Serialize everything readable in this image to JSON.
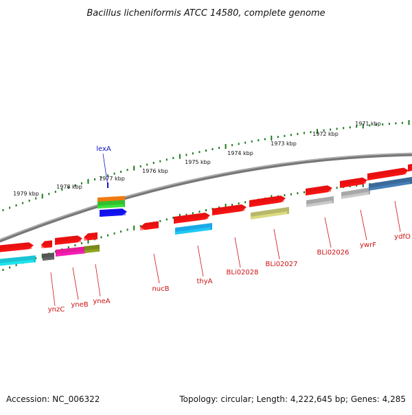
{
  "title": "Bacillus licheniformis ATCC 14580, complete genome",
  "footer": {
    "accession": "Accession: NC_006322",
    "summary": "Topology: circular; Length: 4,222,645 bp; Genes: 4,285"
  },
  "ruler_labels": [
    "1979 kbp",
    "1978 kbp",
    "1977 kbp",
    "1976 kbp",
    "1975 kbp",
    "1974 kbp",
    "1973 kbp",
    "1972 kbp",
    "1971 kbp"
  ],
  "gene_labels": {
    "above": [
      "lexA"
    ],
    "below": [
      "ynzC",
      "yneB",
      "yneA",
      "nucB",
      "thyA",
      "BLi02028",
      "BLi02027",
      "BLi02026",
      "ywrF",
      "ydfO"
    ]
  },
  "colors": {
    "backbone": "#777777",
    "ruler_ticks": "#1a7a1a",
    "gene_arrow": "#e81010",
    "label_above": "#1010cc",
    "label_below": "#cc1010",
    "feature_cyan": "#19c4d4",
    "feature_sky": "#1aa8e6",
    "feature_blue": "#1010e8",
    "feature_magenta": "#e61a9a",
    "feature_olive": "#7a8a1a",
    "feature_khaki": "#b8b86a",
    "feature_gray": "#a8a8a8",
    "feature_steel": "#3a6a9a",
    "feature_dark_gray": "#555555"
  }
}
